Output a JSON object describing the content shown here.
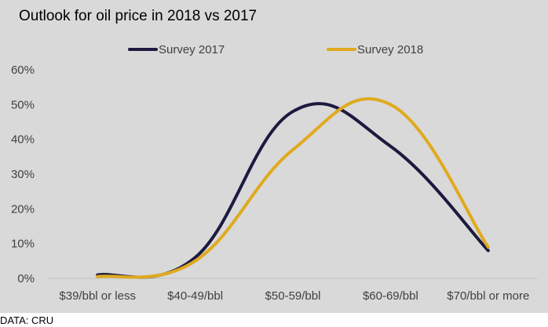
{
  "chart_data": {
    "type": "line",
    "title": "Outlook for oil price in 2018 vs 2017",
    "source": "DATA: CRU",
    "categories": [
      "$39/bbl or less",
      "$40-49/bbl",
      "$50-59/bbl",
      "$60-69/bbl",
      "$70/bbl or more"
    ],
    "series": [
      {
        "name": "Survey 2017",
        "color": "#1c1a3f",
        "values": [
          1,
          6,
          48,
          38,
          8
        ]
      },
      {
        "name": "Survey 2018",
        "color": "#e0aa1e",
        "values": [
          0.5,
          5,
          37,
          50,
          9
        ]
      }
    ],
    "yticks": [
      "0%",
      "10%",
      "20%",
      "30%",
      "40%",
      "50%",
      "60%"
    ],
    "ylim": [
      0,
      60
    ],
    "legend": "top",
    "smooth": true,
    "grid": false
  }
}
